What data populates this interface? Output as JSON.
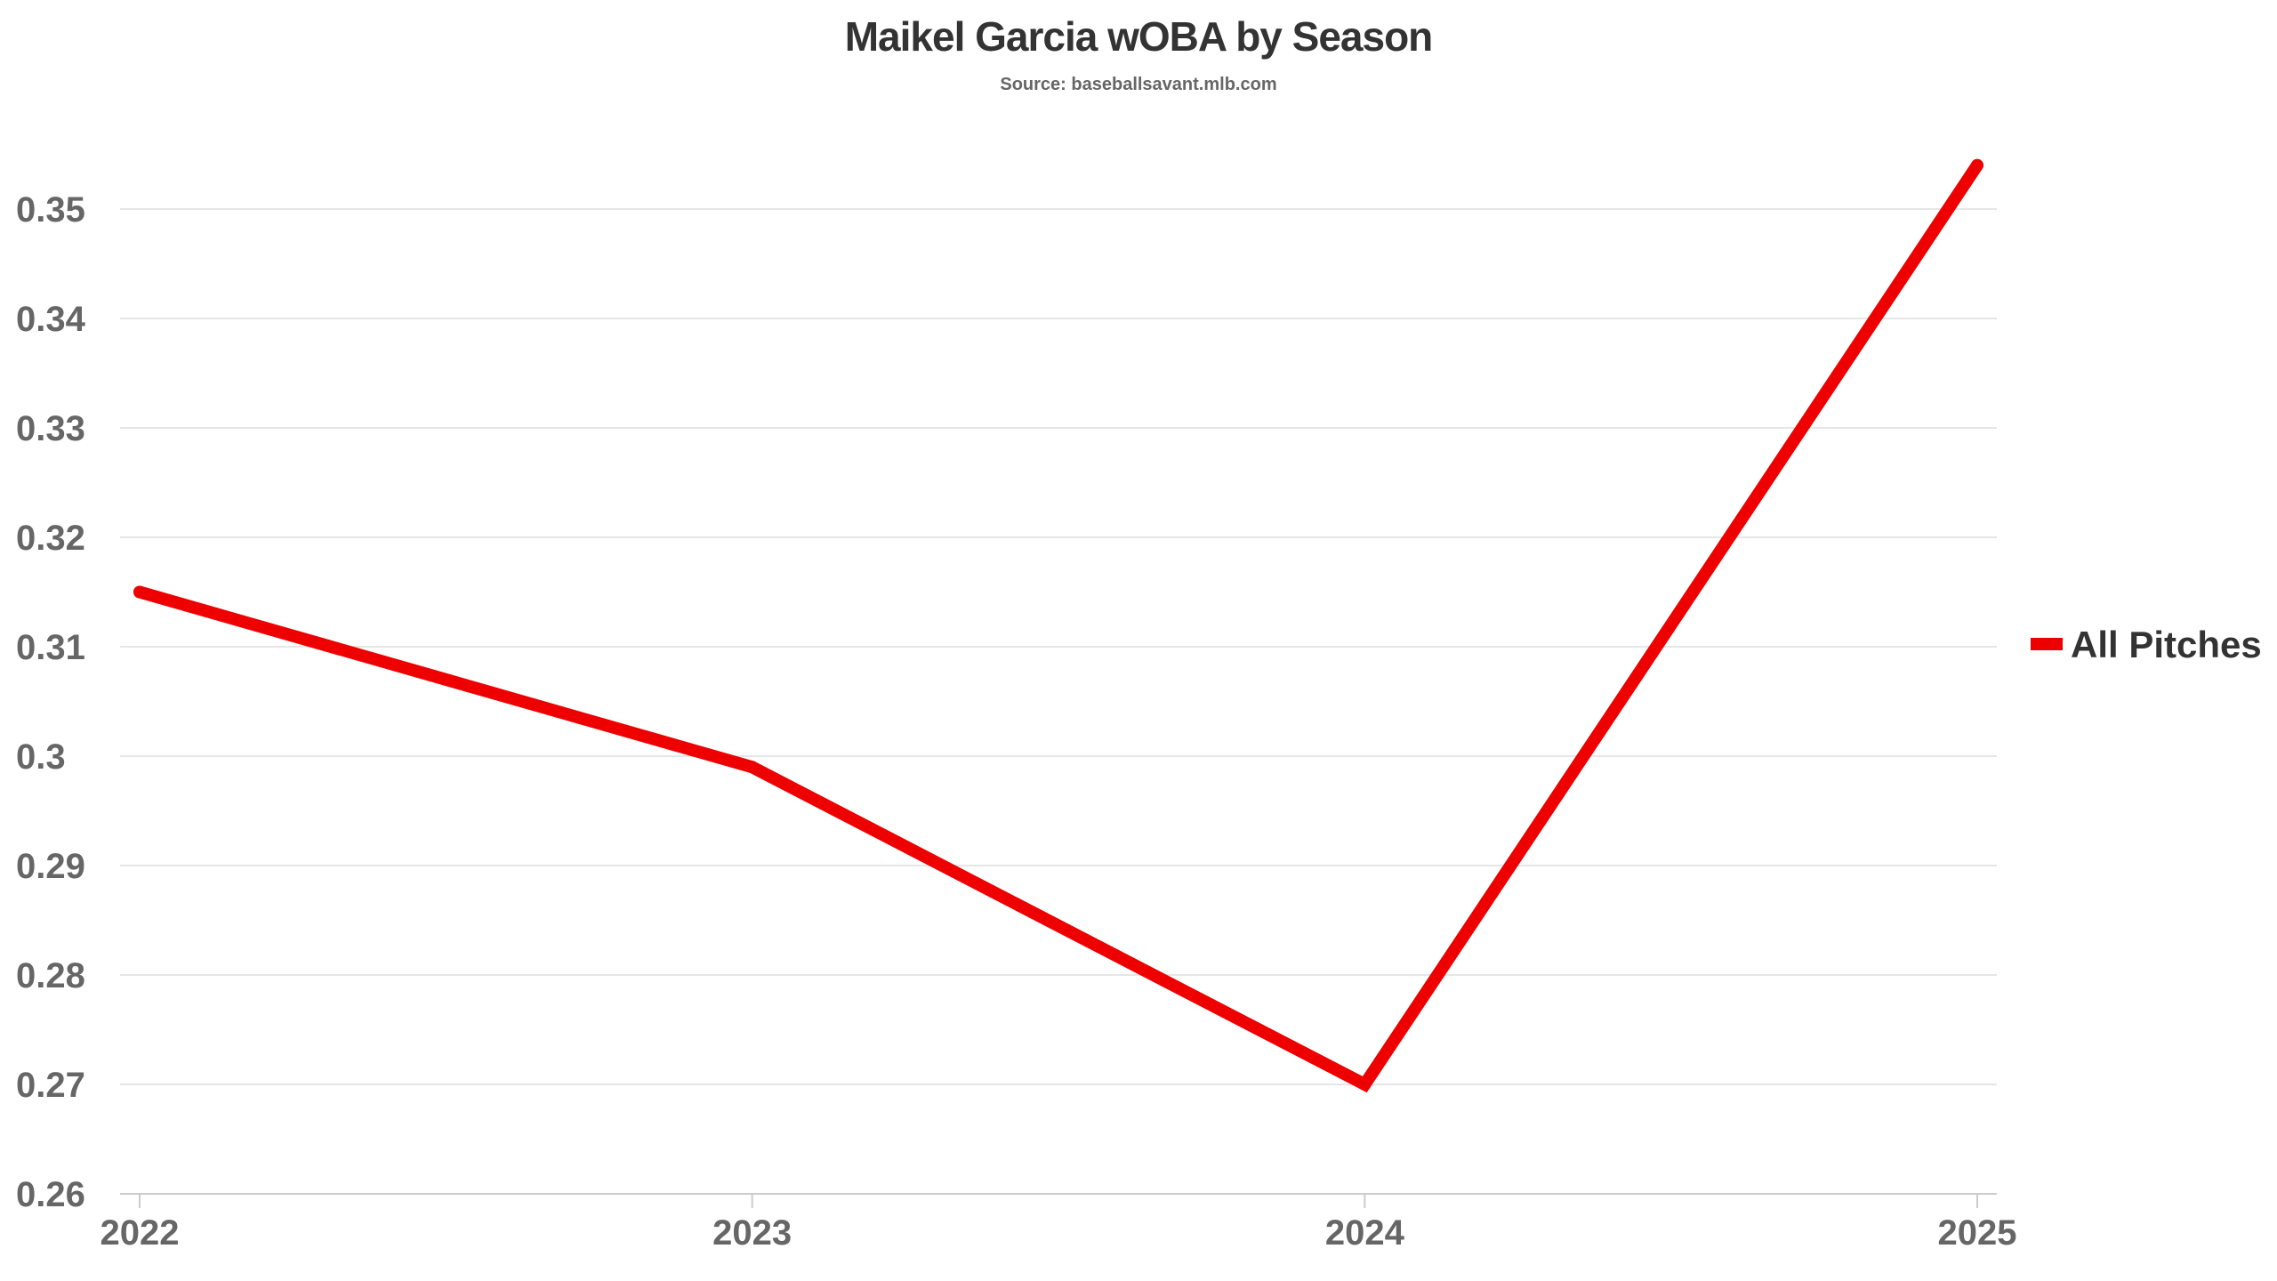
{
  "chart_data": {
    "type": "line",
    "title": "Maikel Garcia wOBA by Season",
    "subtitle": "Source: baseballsavant.mlb.com",
    "xlabel": "",
    "ylabel": "",
    "categories": [
      "2022",
      "2023",
      "2024",
      "2025"
    ],
    "series": [
      {
        "name": "All Pitches",
        "values": [
          0.315,
          0.299,
          0.27,
          0.354
        ],
        "color": "#ee0000"
      }
    ],
    "ylim": [
      0.26,
      0.355
    ],
    "yticks": [
      0.26,
      0.27,
      0.28,
      0.29,
      0.3,
      0.31,
      0.32,
      0.33,
      0.34,
      0.35
    ],
    "ytick_labels": [
      "0.26",
      "0.27",
      "0.28",
      "0.29",
      "0.3",
      "0.31",
      "0.32",
      "0.33",
      "0.34",
      "0.35"
    ],
    "grid": true,
    "legend_position": "right",
    "colors": {
      "grid": "#e6e6e6",
      "axis": "#cccccc",
      "tick_text": "#666666",
      "title_text": "#333333"
    }
  }
}
